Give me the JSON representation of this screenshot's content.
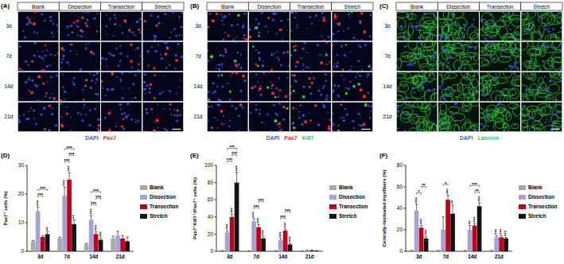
{
  "image_panels": [
    {
      "label": "(A)",
      "columns": [
        "Blank",
        "Dissection",
        "Transection",
        "Stretch"
      ],
      "rows": [
        "3d",
        "7d",
        "14d",
        "21d"
      ],
      "stains": [
        {
          "text": "DAPI",
          "color": "#3d5cff"
        },
        {
          "text": "Pax7",
          "color": "#ff2a2a"
        }
      ]
    },
    {
      "label": "(B)",
      "columns": [
        "Blank",
        "Dissection",
        "Transection",
        "Stretch"
      ],
      "rows": [
        "3d",
        "7d",
        "14d",
        "21d"
      ],
      "stains": [
        {
          "text": "DAPI",
          "color": "#3d5cff"
        },
        {
          "text": "Pax7",
          "color": "#ff2a2a"
        },
        {
          "text": "Ki67",
          "color": "#2fcf3a"
        }
      ]
    },
    {
      "label": "(C)",
      "columns": [
        "Blank",
        "Dissection",
        "Transection",
        "Stretch"
      ],
      "rows": [
        "3d",
        "7d",
        "14d",
        "21d"
      ],
      "stains": [
        {
          "text": "DAPI",
          "color": "#3d5cff"
        },
        {
          "text": "Laminin",
          "color": "#2fcf3a"
        }
      ]
    }
  ],
  "chart_data": [
    {
      "type": "bar",
      "title": "(D)",
      "y_label": "Pax7⁺ cells (%)",
      "categories": [
        "3d",
        "7d",
        "14d",
        "21d"
      ],
      "ylim": [
        0,
        30
      ],
      "yticks": [
        0,
        10,
        20,
        30
      ],
      "grid": false,
      "legend": "right",
      "series": [
        {
          "name": "Blank",
          "color": "#a8a8b0",
          "values": [
            3.5,
            4.5,
            2.5,
            4.5
          ],
          "errors": [
            0.3,
            0.4,
            0.3,
            0.8
          ],
          "stars": [
            null,
            null,
            null,
            null
          ]
        },
        {
          "name": "Dissection",
          "color": "#a5a3d6",
          "values": [
            14,
            19.5,
            11,
            5.5
          ],
          "errors": [
            1.5,
            3,
            1.5,
            1.5
          ],
          "stars": [
            "***",
            "***",
            "***",
            null
          ]
        },
        {
          "name": "Transection",
          "color": "#c00018",
          "values": [
            5,
            25,
            6,
            4.5
          ],
          "errors": [
            0.5,
            2.5,
            0.8,
            1
          ],
          "stars": [
            null,
            "***",
            "***",
            null
          ]
        },
        {
          "name": "Stretch",
          "color": "#141414",
          "values": [
            6,
            9.5,
            4,
            3.5
          ],
          "errors": [
            0.8,
            1.5,
            0.5,
            1.5
          ],
          "stars": [
            "**",
            "**",
            "***",
            null
          ]
        }
      ],
      "comparisons": [
        {
          "category": "3d",
          "between": [
            "Dissection",
            "Transection"
          ],
          "label": "***"
        },
        {
          "category": "3d",
          "between": [
            "Dissection",
            "Stretch"
          ],
          "label": "***"
        },
        {
          "category": "7d",
          "between": [
            "Dissection",
            "Transection"
          ],
          "label": "***"
        },
        {
          "category": "7d",
          "between": [
            "Transection",
            "Stretch"
          ],
          "label": "***"
        },
        {
          "category": "7d",
          "between": [
            "Dissection",
            "Stretch"
          ],
          "label": "***"
        },
        {
          "category": "14d",
          "between": [
            "Dissection",
            "Transection"
          ],
          "label": "***"
        },
        {
          "category": "14d",
          "between": [
            "Transection",
            "Stretch"
          ],
          "label": "***"
        },
        {
          "category": "14d",
          "between": [
            "Dissection",
            "Stretch"
          ],
          "label": "***"
        }
      ]
    },
    {
      "type": "bar",
      "title": "(E)",
      "y_label": "Pax7⁺Ki67⁺/Pax7⁺ cells (%)",
      "categories": [
        "3d",
        "7d",
        "14d",
        "21d"
      ],
      "ylim": [
        0,
        100
      ],
      "yticks": [
        0,
        20,
        40,
        60,
        80,
        100
      ],
      "grid": false,
      "legend": "right",
      "series": [
        {
          "name": "Blank",
          "color": "#a8a8b0",
          "values": [
            0.5,
            0.3,
            0.3,
            0.2
          ],
          "errors": [
            0.2,
            0.2,
            0.2,
            0.1
          ],
          "stars": [
            null,
            null,
            null,
            null
          ]
        },
        {
          "name": "Dissection",
          "color": "#a5a3d6",
          "values": [
            22,
            35,
            13,
            1
          ],
          "errors": [
            2,
            3,
            2,
            0.5
          ],
          "stars": [
            "***",
            "***",
            "***",
            null
          ]
        },
        {
          "name": "Transection",
          "color": "#c00018",
          "values": [
            40,
            28,
            24,
            1
          ],
          "errors": [
            3,
            3,
            2,
            0.5
          ],
          "stars": [
            "***",
            "***",
            "***",
            null
          ]
        },
        {
          "name": "Stretch",
          "color": "#141414",
          "values": [
            80,
            15,
            8,
            0.5
          ],
          "errors": [
            12,
            2,
            1.5,
            0.3
          ],
          "stars": [
            "***",
            "***",
            "***",
            null
          ]
        }
      ],
      "comparisons": [
        {
          "category": "3d",
          "between": [
            "Dissection",
            "Transection"
          ],
          "label": "***"
        },
        {
          "category": "3d",
          "between": [
            "Transection",
            "Stretch"
          ],
          "label": "***"
        },
        {
          "category": "3d",
          "between": [
            "Dissection",
            "Stretch"
          ],
          "label": "***"
        },
        {
          "category": "7d",
          "between": [
            "Dissection",
            "Transection"
          ],
          "label": "***"
        },
        {
          "category": "7d",
          "between": [
            "Transection",
            "Stretch"
          ],
          "label": "***"
        },
        {
          "category": "14d",
          "between": [
            "Dissection",
            "Transection"
          ],
          "label": "***"
        },
        {
          "category": "14d",
          "between": [
            "Transection",
            "Stretch"
          ],
          "label": "***"
        }
      ]
    },
    {
      "type": "bar",
      "title": "(F)",
      "y_label": "Centrally-nucleated myofibers (%)",
      "categories": [
        "3d",
        "7d",
        "14d",
        "21d"
      ],
      "ylim": [
        0,
        80
      ],
      "yticks": [
        0,
        20,
        40,
        60,
        80
      ],
      "grid": false,
      "legend": "right",
      "series": [
        {
          "name": "Blank",
          "color": "#a8a8b0",
          "values": [
            0.5,
            0.5,
            0.5,
            0.5
          ],
          "errors": [
            0.3,
            0.3,
            0.3,
            0.3
          ],
          "stars": [
            null,
            null,
            null,
            null
          ]
        },
        {
          "name": "Dissection",
          "color": "#a5a3d6",
          "values": [
            38,
            20,
            20,
            13
          ],
          "errors": [
            6,
            12,
            4,
            1.5
          ],
          "stars": [
            "***",
            null,
            "**",
            "***"
          ]
        },
        {
          "name": "Transection",
          "color": "#c00018",
          "values": [
            22,
            48,
            24,
            13
          ],
          "errors": [
            2,
            4,
            2,
            1.5
          ],
          "stars": [
            "***",
            "***",
            "***",
            "***"
          ]
        },
        {
          "name": "Stretch",
          "color": "#141414",
          "values": [
            12,
            35,
            42,
            12
          ],
          "errors": [
            2,
            8,
            3,
            1
          ],
          "stars": [
            "***",
            "**",
            "***",
            "***"
          ]
        }
      ],
      "comparisons": [
        {
          "category": "3d",
          "between": [
            "Dissection",
            "Transection"
          ],
          "label": "*"
        },
        {
          "category": "3d",
          "between": [
            "Transection",
            "Stretch"
          ],
          "label": "**"
        },
        {
          "category": "7d",
          "between": [
            "Dissection",
            "Transection"
          ],
          "label": "*"
        },
        {
          "category": "14d",
          "between": [
            "Transection",
            "Stretch"
          ],
          "label": "**"
        },
        {
          "category": "14d",
          "between": [
            "Dissection",
            "Stretch"
          ],
          "label": "***"
        }
      ]
    }
  ]
}
